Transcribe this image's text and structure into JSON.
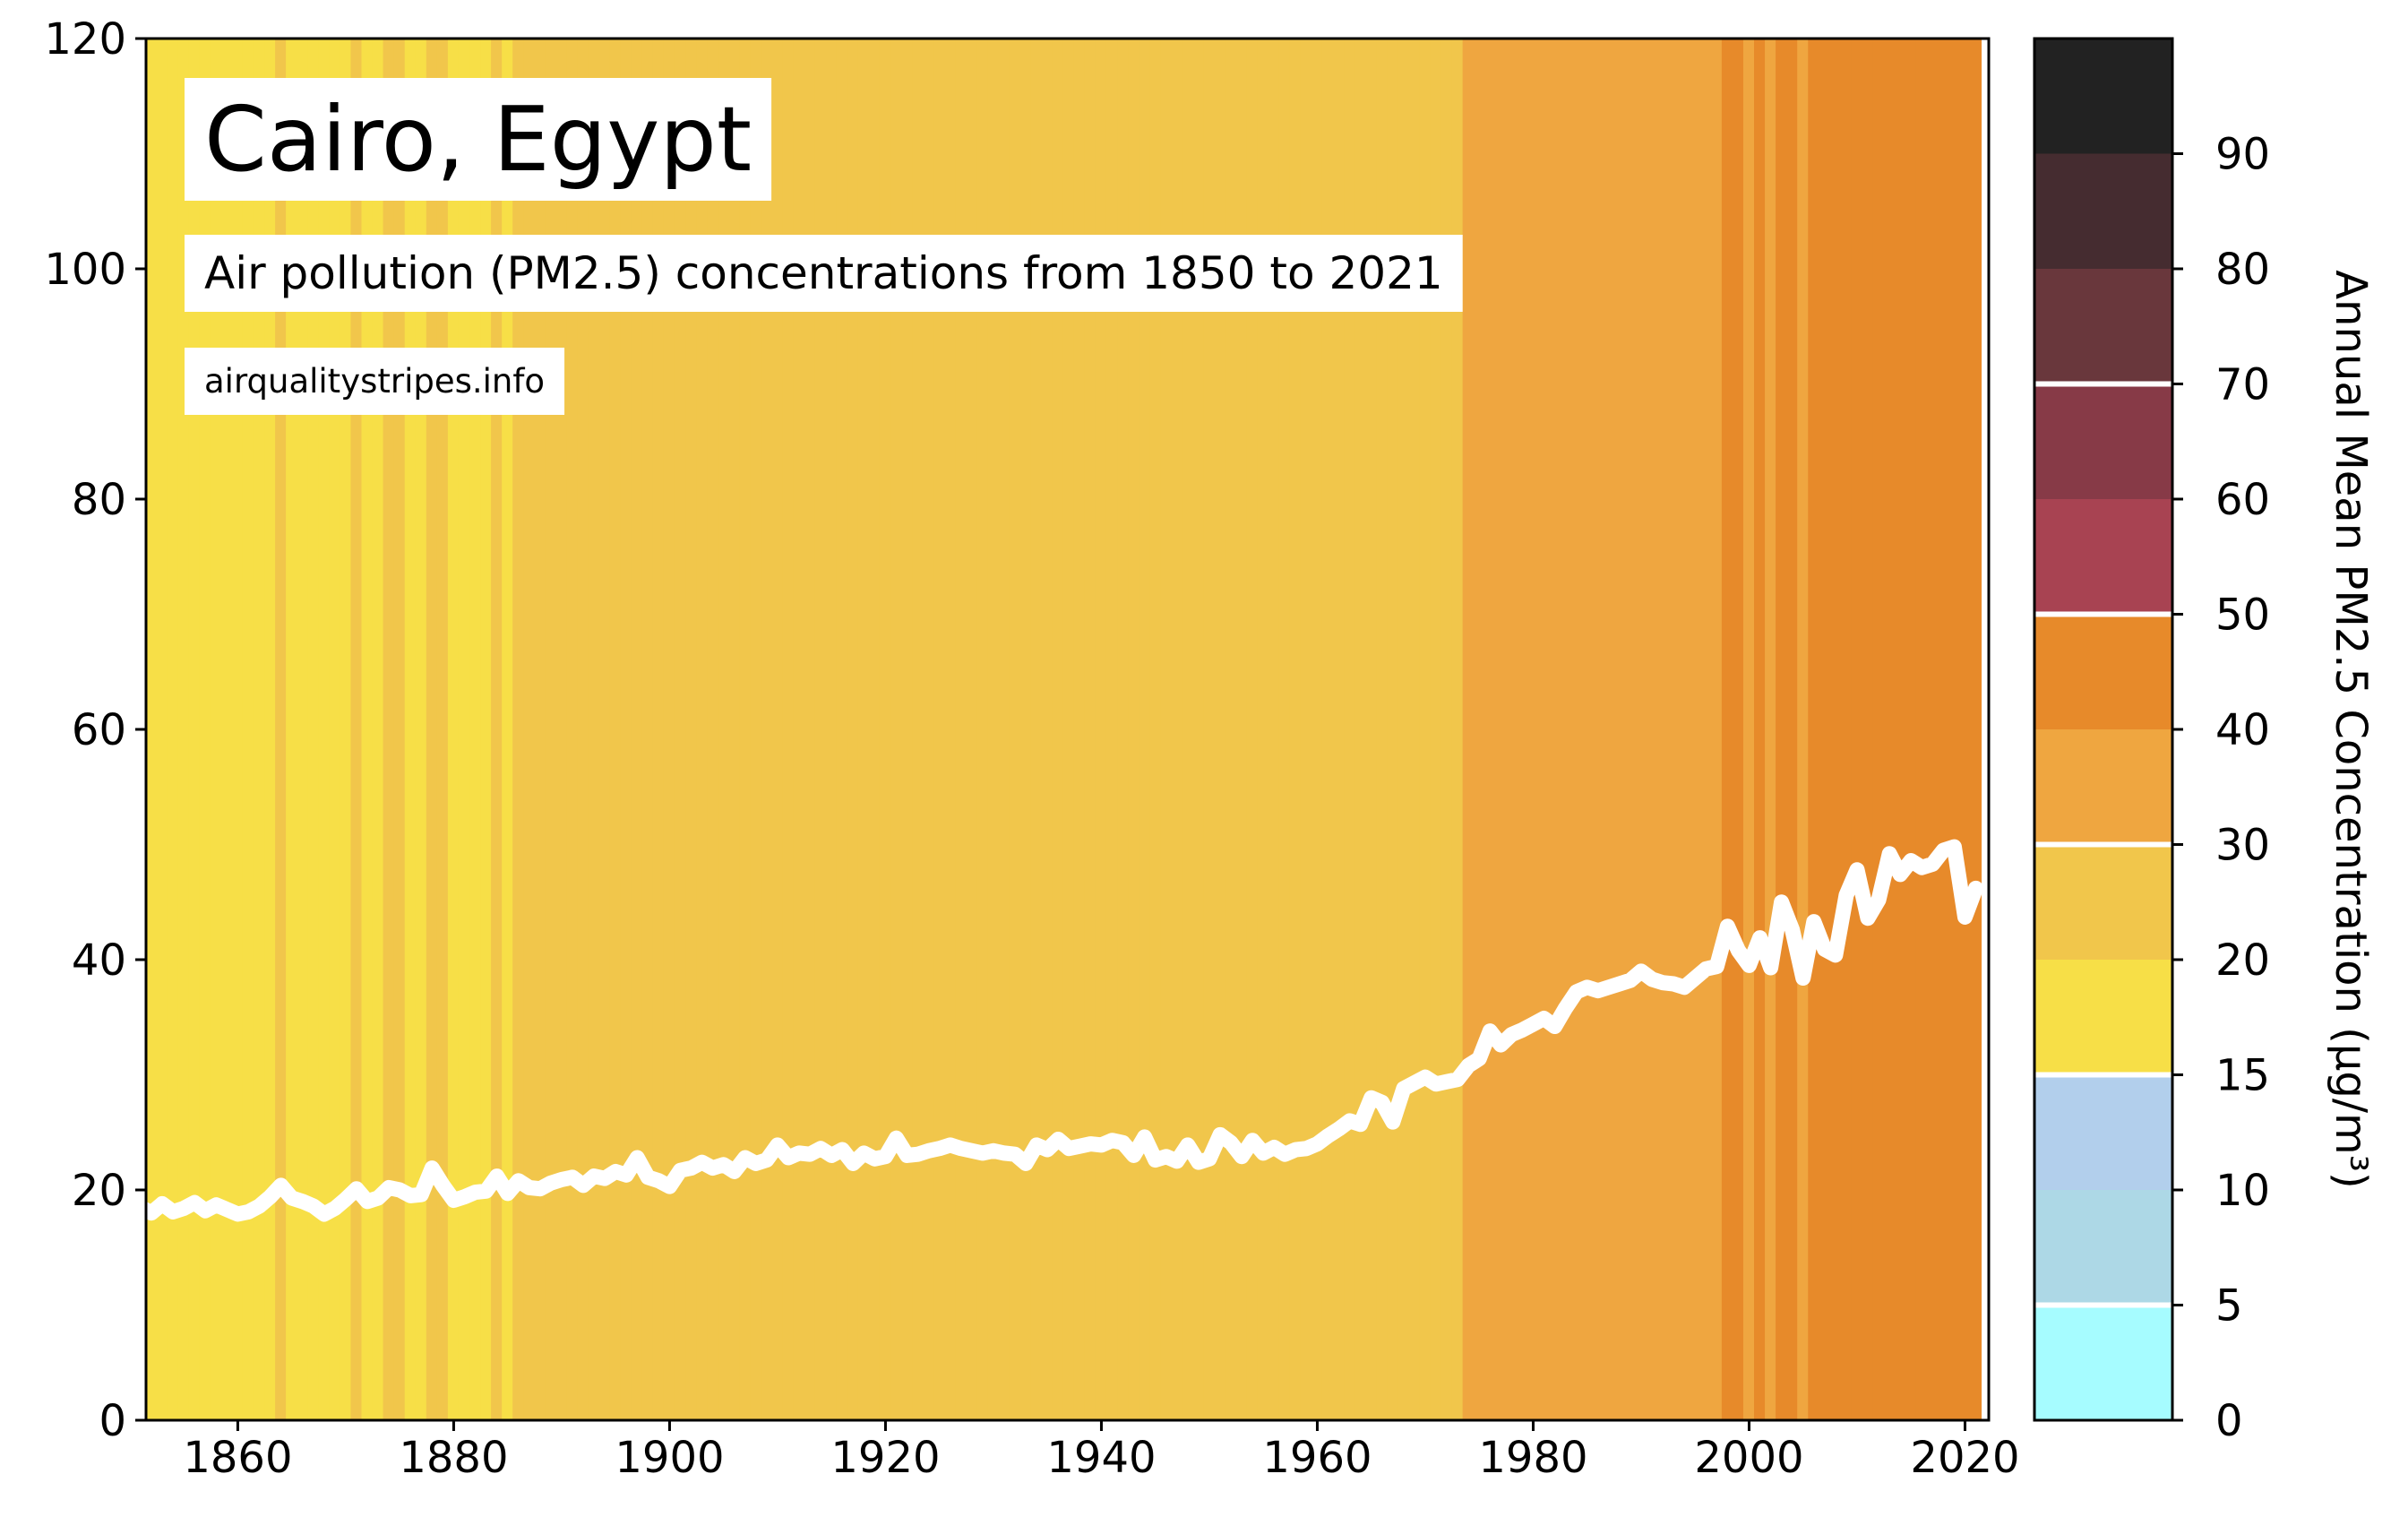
{
  "chart_data": {
    "type": "stripes-line",
    "title": "Cairo, Egypt",
    "subtitle": "Air pollution (PM2.5) concentrations from 1850 to 2021",
    "source": "airqualitystripes.info",
    "colorbar_label": "Annual Mean PM2.5 Concentration (μg/m³)",
    "x": [
      1850,
      1851,
      1852,
      1853,
      1854,
      1855,
      1856,
      1857,
      1858,
      1859,
      1860,
      1861,
      1862,
      1863,
      1864,
      1865,
      1866,
      1867,
      1868,
      1869,
      1870,
      1871,
      1872,
      1873,
      1874,
      1875,
      1876,
      1877,
      1878,
      1879,
      1880,
      1881,
      1882,
      1883,
      1884,
      1885,
      1886,
      1887,
      1888,
      1889,
      1890,
      1891,
      1892,
      1893,
      1894,
      1895,
      1896,
      1897,
      1898,
      1899,
      1900,
      1901,
      1902,
      1903,
      1904,
      1905,
      1906,
      1907,
      1908,
      1909,
      1910,
      1911,
      1912,
      1913,
      1914,
      1915,
      1916,
      1917,
      1918,
      1919,
      1920,
      1921,
      1922,
      1923,
      1924,
      1925,
      1926,
      1927,
      1928,
      1929,
      1930,
      1931,
      1932,
      1933,
      1934,
      1935,
      1936,
      1937,
      1938,
      1939,
      1940,
      1941,
      1942,
      1943,
      1944,
      1945,
      1946,
      1947,
      1948,
      1949,
      1950,
      1951,
      1952,
      1953,
      1954,
      1955,
      1956,
      1957,
      1958,
      1959,
      1960,
      1961,
      1962,
      1963,
      1964,
      1965,
      1966,
      1967,
      1968,
      1969,
      1970,
      1971,
      1972,
      1973,
      1974,
      1975,
      1976,
      1977,
      1978,
      1979,
      1980,
      1981,
      1982,
      1983,
      1984,
      1985,
      1986,
      1987,
      1988,
      1989,
      1990,
      1991,
      1992,
      1993,
      1994,
      1995,
      1996,
      1997,
      1998,
      1999,
      2000,
      2001,
      2002,
      2003,
      2004,
      2005,
      2006,
      2007,
      2008,
      2009,
      2010,
      2011,
      2012,
      2013,
      2014,
      2015,
      2016,
      2017,
      2018,
      2019,
      2020,
      2021
    ],
    "values": [
      18.3,
      18.5,
      18.0,
      18.8,
      18.1,
      18.4,
      18.9,
      18.2,
      18.7,
      18.3,
      17.9,
      18.1,
      18.6,
      19.4,
      20.4,
      19.3,
      19.0,
      18.6,
      17.9,
      18.4,
      19.2,
      20.1,
      19.0,
      19.3,
      20.2,
      20.0,
      19.5,
      19.6,
      21.9,
      20.4,
      19.1,
      19.4,
      19.8,
      19.9,
      21.2,
      19.7,
      20.8,
      20.2,
      20.1,
      20.6,
      20.9,
      21.1,
      20.4,
      21.2,
      21.0,
      21.6,
      21.3,
      22.8,
      21.1,
      20.8,
      20.3,
      21.7,
      21.9,
      22.4,
      21.9,
      22.2,
      21.6,
      22.8,
      22.3,
      22.6,
      23.9,
      22.8,
      23.2,
      23.1,
      23.6,
      23.0,
      23.5,
      22.3,
      23.2,
      22.7,
      22.9,
      24.5,
      23.0,
      23.1,
      23.4,
      23.6,
      23.9,
      23.6,
      23.4,
      23.2,
      23.4,
      23.2,
      23.1,
      22.3,
      23.9,
      23.5,
      24.4,
      23.6,
      23.8,
      24.0,
      23.9,
      24.3,
      24.1,
      23.0,
      24.6,
      22.6,
      22.9,
      22.5,
      23.9,
      22.4,
      22.7,
      24.8,
      24.1,
      22.9,
      24.3,
      23.2,
      23.7,
      23.1,
      23.5,
      23.6,
      24.0,
      24.7,
      25.3,
      26.0,
      25.7,
      28.0,
      27.6,
      25.9,
      28.8,
      29.3,
      29.8,
      29.2,
      29.4,
      29.6,
      30.8,
      31.4,
      33.8,
      32.6,
      33.5,
      33.9,
      34.4,
      34.9,
      34.2,
      35.8,
      37.2,
      37.6,
      37.3,
      37.6,
      37.9,
      38.2,
      39.0,
      38.3,
      38.0,
      37.9,
      37.6,
      38.4,
      39.2,
      39.4,
      42.9,
      40.8,
      39.5,
      41.9,
      39.3,
      45.0,
      42.6,
      38.4,
      43.3,
      40.9,
      40.4,
      45.6,
      47.8,
      43.6,
      45.2,
      49.2,
      47.4,
      48.6,
      48.0,
      48.3,
      49.5,
      49.8,
      43.7,
      46.2
    ],
    "line_color": "#ffffff",
    "xlim": [
      1851.5,
      2022.2
    ],
    "ylim": [
      0,
      120
    ],
    "xticks": [
      1860,
      1880,
      1900,
      1920,
      1940,
      1960,
      1980,
      2000,
      2020
    ],
    "yticks": [
      0,
      20,
      40,
      60,
      80,
      100,
      120
    ],
    "colorbar_bounds": [
      0,
      5,
      10,
      15,
      20,
      30,
      40,
      50,
      60,
      70,
      80,
      90,
      100
    ],
    "colorbar_colors": [
      "#a6fcff",
      "#add8e6",
      "#b2cfec",
      "#f7df47",
      "#f1c64b",
      "#efa640",
      "#e78a2a",
      "#a84352",
      "#873a47",
      "#69373c",
      "#452c30",
      "#222222"
    ],
    "colorbar_ticks": [
      0,
      5,
      10,
      15,
      20,
      30,
      40,
      50,
      60,
      70,
      80,
      90
    ],
    "colorbar_guide_lines": [
      5,
      15,
      30,
      50,
      70
    ]
  }
}
